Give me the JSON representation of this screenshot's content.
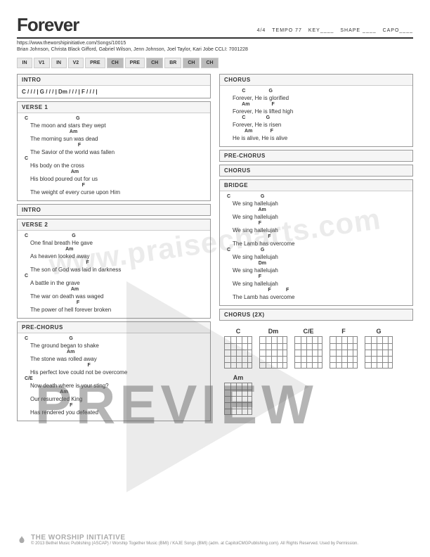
{
  "header": {
    "title": "Forever",
    "time_sig": "4/4",
    "tempo_label": "TEMPO 77",
    "key_label": "KEY____",
    "shape_label": "SHAPE ____",
    "capo_label": "CAPO____"
  },
  "url": "https://www.theworshipinitiative.com/Songs/10015",
  "credits": "Brian Johnson, Christa Black Gifford, Gabriel Wilson, Jenn Johnson, Joel Taylor, Kari Jobe  CCLI: 7001228",
  "arrangement": [
    "IN",
    "V1",
    "IN",
    "V2",
    "PRE",
    "CH",
    "PRE",
    "CH",
    "BR",
    "CH",
    "CH"
  ],
  "arrangement_hl": [
    false,
    false,
    false,
    false,
    false,
    true,
    false,
    true,
    false,
    true,
    true
  ],
  "sections": {
    "intro": {
      "title": "INTRO",
      "chords": "C / / /  |  G / / /  |  Dm / / /  |  F / / /  |"
    },
    "verse1": {
      "title": "VERSE 1",
      "lines": [
        {
          "c": "C                                   G",
          "l": "The moon and stars they wept"
        },
        {
          "c": "                                 Am",
          "l": "The morning sun was dead"
        },
        {
          "c": "                                       F",
          "l": "The Savior of the world was fallen"
        },
        {
          "c": "C",
          "l": "His body on the cross"
        },
        {
          "c": "                                  Am",
          "l": "His blood poured out for us"
        },
        {
          "c": "                                          F",
          "l": "The weight of every curse upon Him"
        }
      ]
    },
    "intro2": {
      "title": "INTRO"
    },
    "verse2": {
      "title": "VERSE 2",
      "lines": [
        {
          "c": "C                                G",
          "l": "One final breath He gave"
        },
        {
          "c": "                              Am",
          "l": "As heaven looked away"
        },
        {
          "c": "                                             F",
          "l": "The son of God was laid in darkness"
        },
        {
          "c": "C",
          "l": "A battle in the grave"
        },
        {
          "c": "                                  Am",
          "l": "The war on death was waged"
        },
        {
          "c": "                                      F",
          "l": "The power of hell forever broken"
        }
      ]
    },
    "prechorus": {
      "title": "PRE-CHORUS",
      "lines": [
        {
          "c": "C                              G",
          "l": "The ground began to shake"
        },
        {
          "c": "                               Am",
          "l": "The stone was rolled away"
        },
        {
          "c": "                                              F",
          "l": "His perfect love could not be overcome"
        },
        {
          "c": "C/E",
          "l": "Now death where is your sting?"
        },
        {
          "c": "                          Am",
          "l": "Our resurrected King"
        },
        {
          "c": "                                 F",
          "l": "Has rendered you defeated"
        }
      ]
    },
    "chorus": {
      "title": "CHORUS",
      "lines": [
        {
          "c": "           C                 G",
          "l": "Forever, He is glorified"
        },
        {
          "c": "           Am                F",
          "l": "Forever, He is lifted high"
        },
        {
          "c": "           C               G",
          "l": "Forever, He is risen"
        },
        {
          "c": "             Am             F",
          "l": "He is alive, He is alive"
        }
      ]
    },
    "prechorus2": {
      "title": "PRE-CHORUS"
    },
    "chorus2": {
      "title": "CHORUS"
    },
    "bridge": {
      "title": "BRIDGE",
      "lines": [
        {
          "c": "C                      G",
          "l": "We sing hallelujah"
        },
        {
          "c": "                       Am",
          "l": "We sing hallelujah"
        },
        {
          "c": "                       F",
          "l": "We sing hallelujah"
        },
        {
          "c": "                              F",
          "l": "The Lamb has overcome"
        },
        {
          "c": "C                      G",
          "l": "We sing hallelujah"
        },
        {
          "c": "                       Dm",
          "l": "We sing hallelujah"
        },
        {
          "c": "                       F",
          "l": "We sing hallelujah"
        },
        {
          "c": "                              F           F",
          "l": "The Lamb has overcome"
        }
      ]
    },
    "chorus2x": {
      "title": "CHORUS (2X)"
    }
  },
  "chord_diagrams": [
    "C",
    "Dm",
    "C/E",
    "F",
    "G",
    "Am"
  ],
  "watermark": "www.praisecharts.com",
  "preview_text": "PREVIEW",
  "footer": {
    "brand": "THE WORSHIP INITIATIVE",
    "copyright": "© 2013 Bethel Music Publishing (ASCAP) / Worship Together Music (BMI) / KAJE Songs (BMI) (adm. at CapitolCMGPublishing.com). All Rights Reserved. Used by Permission."
  },
  "colors": {
    "text": "#333333",
    "border": "#999999",
    "box_bg": "#e8e8e8",
    "box_hl": "#bbbbbb",
    "overlay": "rgba(90,90,90,0.45)"
  }
}
